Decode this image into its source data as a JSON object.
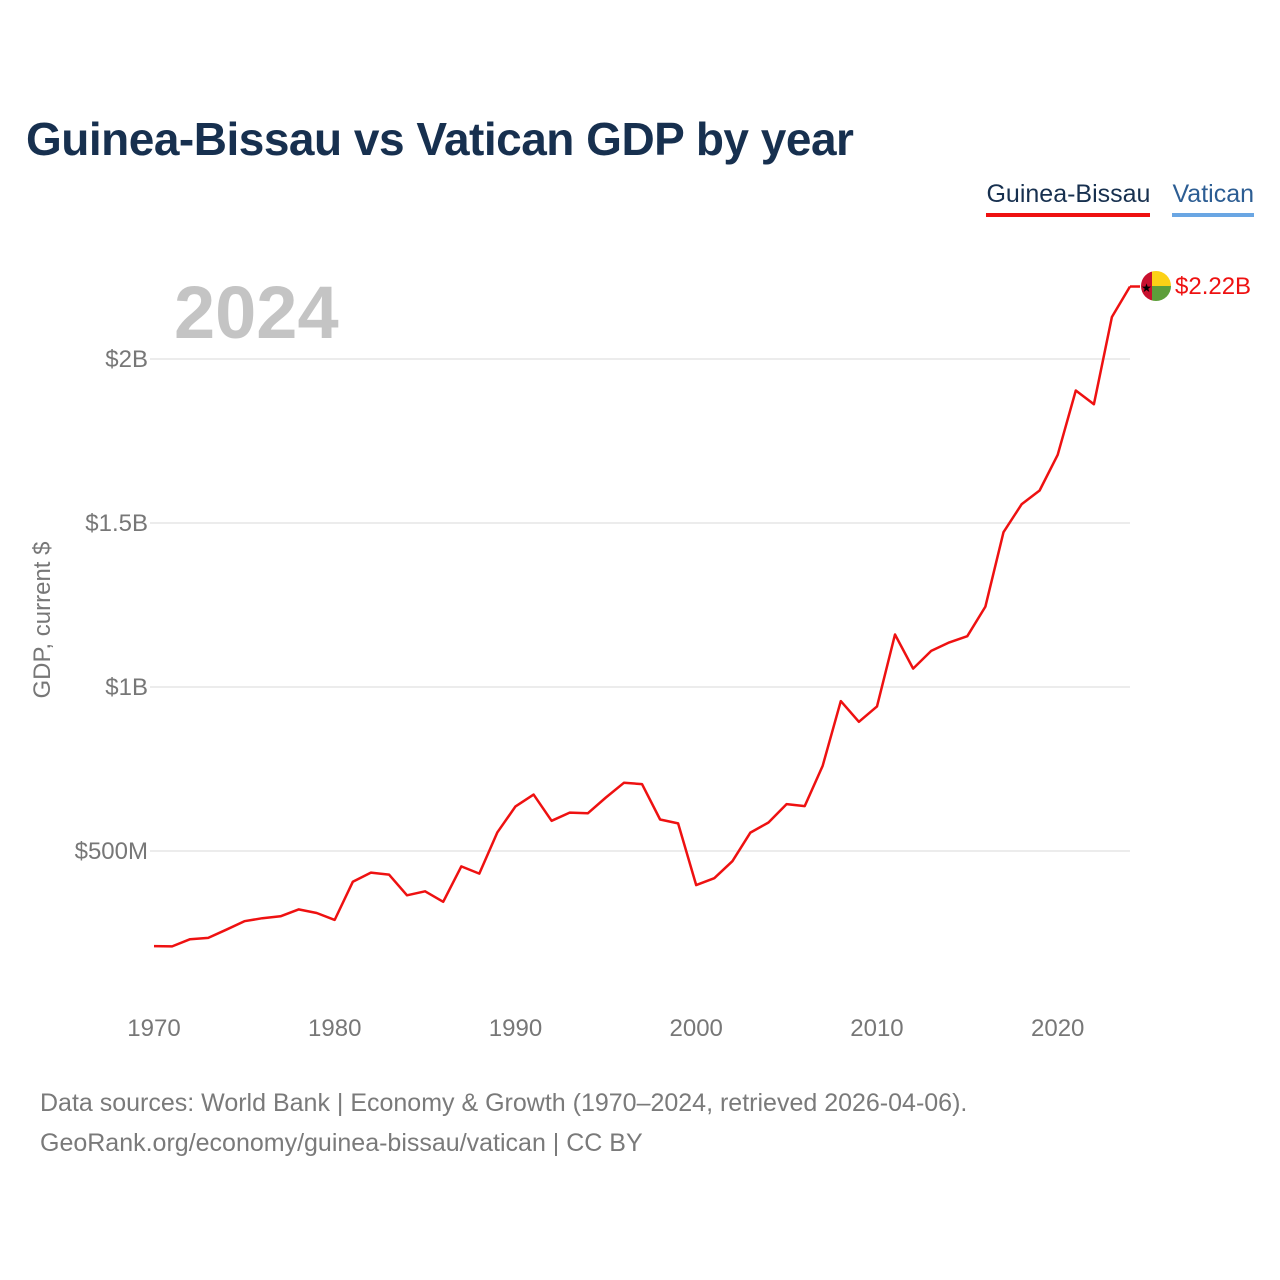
{
  "title": "Guinea-Bissau vs Vatican GDP by year",
  "legend": {
    "items": [
      {
        "label": "Guinea-Bissau",
        "color": "#ee1111"
      },
      {
        "label": "Vatican",
        "color": "#6aa6e3"
      }
    ]
  },
  "year_label": "2024",
  "end_label": "$2.22B",
  "footer": {
    "line1": "Data sources: World Bank | Economy & Growth (1970–2024, retrieved 2026-04-06).",
    "line2": "GeoRank.org/economy/guinea-bissau/vatican | CC BY"
  },
  "chart_data": {
    "type": "line",
    "title": "Guinea-Bissau vs Vatican GDP by year",
    "xlabel": "",
    "ylabel": "GDP, current $",
    "xlim": [
      1970,
      2024
    ],
    "ylim": [
      0.1,
      2.22
    ],
    "y_unit": "billion USD",
    "x_ticks": [
      1970,
      1980,
      1990,
      2000,
      2010,
      2020
    ],
    "y_ticks": [
      {
        "value": 0.5,
        "label": "$500M"
      },
      {
        "value": 1.0,
        "label": "$1B"
      },
      {
        "value": 1.5,
        "label": "$1.5B"
      },
      {
        "value": 2.0,
        "label": "$2B"
      }
    ],
    "grid": true,
    "legend_position": "top-right",
    "series": [
      {
        "name": "Guinea-Bissau",
        "color": "#ee1111",
        "x": [
          1970,
          1971,
          1972,
          1973,
          1974,
          1975,
          1976,
          1977,
          1978,
          1979,
          1980,
          1981,
          1982,
          1983,
          1984,
          1985,
          1986,
          1987,
          1988,
          1989,
          1990,
          1991,
          1992,
          1993,
          1994,
          1995,
          1996,
          1997,
          1998,
          1999,
          2000,
          2001,
          2002,
          2003,
          2004,
          2005,
          2006,
          2007,
          2008,
          2009,
          2010,
          2011,
          2012,
          2013,
          2014,
          2015,
          2016,
          2017,
          2018,
          2019,
          2020,
          2021,
          2022,
          2023,
          2024
        ],
        "values": [
          0.21,
          0.209,
          0.231,
          0.235,
          0.26,
          0.286,
          0.295,
          0.301,
          0.322,
          0.311,
          0.29,
          0.406,
          0.434,
          0.428,
          0.365,
          0.377,
          0.345,
          0.453,
          0.431,
          0.557,
          0.636,
          0.672,
          0.592,
          0.617,
          0.615,
          0.663,
          0.708,
          0.704,
          0.596,
          0.584,
          0.396,
          0.417,
          0.469,
          0.556,
          0.587,
          0.643,
          0.637,
          0.76,
          0.957,
          0.894,
          0.941,
          1.16,
          1.056,
          1.11,
          1.136,
          1.155,
          1.245,
          1.472,
          1.557,
          1.599,
          1.708,
          1.904,
          1.862,
          2.128,
          2.221
        ]
      }
    ]
  }
}
